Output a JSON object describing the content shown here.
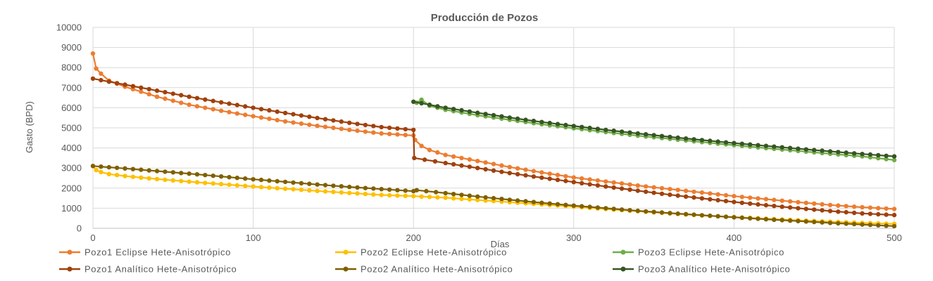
{
  "chart_data": {
    "type": "line",
    "title": "Producción de Pozos",
    "xlabel": "Días",
    "ylabel": "Gasto (BPD)",
    "xlim": [
      0,
      500
    ],
    "ylim": [
      0,
      10000
    ],
    "xticks": [
      0,
      100,
      200,
      300,
      400,
      500
    ],
    "yticks": [
      0,
      1000,
      2000,
      3000,
      4000,
      5000,
      6000,
      7000,
      8000,
      9000,
      10000
    ],
    "grid": true,
    "legend_position": "bottom",
    "series": [
      {
        "name": "Pozo1 Eclipse Hete-Anisotrópico",
        "color": "#ED7D31",
        "points": [
          [
            0,
            8700
          ],
          [
            2,
            7950
          ],
          [
            5,
            7700
          ],
          [
            10,
            7350
          ],
          [
            20,
            7050
          ],
          [
            40,
            6550
          ],
          [
            60,
            6150
          ],
          [
            80,
            5850
          ],
          [
            100,
            5580
          ],
          [
            120,
            5320
          ],
          [
            140,
            5100
          ],
          [
            160,
            4900
          ],
          [
            180,
            4720
          ],
          [
            200,
            4620
          ],
          [
            201,
            4400
          ],
          [
            205,
            4100
          ],
          [
            210,
            3900
          ],
          [
            220,
            3650
          ],
          [
            240,
            3350
          ],
          [
            260,
            3050
          ],
          [
            280,
            2780
          ],
          [
            300,
            2530
          ],
          [
            320,
            2330
          ],
          [
            340,
            2130
          ],
          [
            360,
            1950
          ],
          [
            380,
            1780
          ],
          [
            400,
            1600
          ],
          [
            420,
            1450
          ],
          [
            440,
            1300
          ],
          [
            460,
            1160
          ],
          [
            480,
            1050
          ],
          [
            500,
            960
          ]
        ],
        "marker": "circle"
      },
      {
        "name": "Pozo1 Analítico Hete-Anisotrópico",
        "color": "#A0410D",
        "points": [
          [
            0,
            7450
          ],
          [
            20,
            7150
          ],
          [
            40,
            6850
          ],
          [
            60,
            6550
          ],
          [
            80,
            6270
          ],
          [
            100,
            6000
          ],
          [
            120,
            5740
          ],
          [
            140,
            5490
          ],
          [
            160,
            5250
          ],
          [
            180,
            5040
          ],
          [
            200,
            4900
          ],
          [
            200.5,
            3500
          ],
          [
            220,
            3250
          ],
          [
            240,
            3000
          ],
          [
            260,
            2750
          ],
          [
            280,
            2520
          ],
          [
            300,
            2300
          ],
          [
            320,
            2080
          ],
          [
            340,
            1870
          ],
          [
            360,
            1670
          ],
          [
            380,
            1490
          ],
          [
            400,
            1310
          ],
          [
            420,
            1150
          ],
          [
            440,
            1000
          ],
          [
            460,
            860
          ],
          [
            480,
            740
          ],
          [
            500,
            660
          ]
        ],
        "marker": "circle"
      },
      {
        "name": "Pozo2 Eclipse Hete-Anisotrópico",
        "color": "#FFC000",
        "points": [
          [
            0,
            3100
          ],
          [
            2,
            2900
          ],
          [
            5,
            2800
          ],
          [
            10,
            2700
          ],
          [
            20,
            2600
          ],
          [
            40,
            2450
          ],
          [
            60,
            2320
          ],
          [
            80,
            2200
          ],
          [
            100,
            2080
          ],
          [
            120,
            1970
          ],
          [
            140,
            1860
          ],
          [
            160,
            1760
          ],
          [
            180,
            1660
          ],
          [
            200,
            1600
          ],
          [
            220,
            1520
          ],
          [
            240,
            1410
          ],
          [
            260,
            1300
          ],
          [
            280,
            1190
          ],
          [
            300,
            1080
          ],
          [
            320,
            960
          ],
          [
            340,
            850
          ],
          [
            360,
            740
          ],
          [
            380,
            640
          ],
          [
            400,
            560
          ],
          [
            420,
            480
          ],
          [
            440,
            400
          ],
          [
            460,
            330
          ],
          [
            480,
            270
          ],
          [
            500,
            220
          ]
        ],
        "marker": "circle"
      },
      {
        "name": "Pozo2 Analítico Hete-Anisotrópico",
        "color": "#7F6000",
        "points": [
          [
            0,
            3100
          ],
          [
            20,
            2980
          ],
          [
            40,
            2850
          ],
          [
            60,
            2720
          ],
          [
            80,
            2580
          ],
          [
            100,
            2440
          ],
          [
            120,
            2310
          ],
          [
            140,
            2180
          ],
          [
            160,
            2060
          ],
          [
            180,
            1950
          ],
          [
            200,
            1850
          ],
          [
            202,
            1900
          ],
          [
            220,
            1750
          ],
          [
            240,
            1580
          ],
          [
            260,
            1420
          ],
          [
            280,
            1270
          ],
          [
            300,
            1130
          ],
          [
            320,
            1000
          ],
          [
            340,
            870
          ],
          [
            360,
            760
          ],
          [
            380,
            650
          ],
          [
            400,
            550
          ],
          [
            420,
            450
          ],
          [
            440,
            360
          ],
          [
            460,
            270
          ],
          [
            480,
            190
          ],
          [
            500,
            110
          ]
        ],
        "marker": "circle"
      },
      {
        "name": "Pozo3 Eclipse Hete-Anisotrópico",
        "color": "#70AD47",
        "points": [
          [
            202,
            6250
          ],
          [
            205,
            6400
          ],
          [
            210,
            6100
          ],
          [
            220,
            5900
          ],
          [
            240,
            5630
          ],
          [
            260,
            5400
          ],
          [
            280,
            5180
          ],
          [
            300,
            4980
          ],
          [
            320,
            4790
          ],
          [
            340,
            4610
          ],
          [
            360,
            4450
          ],
          [
            380,
            4290
          ],
          [
            400,
            4140
          ],
          [
            420,
            3990
          ],
          [
            440,
            3850
          ],
          [
            460,
            3710
          ],
          [
            480,
            3580
          ],
          [
            500,
            3400
          ]
        ],
        "marker": "circle"
      },
      {
        "name": "Pozo3 Analítico Hete-Anisotrópico",
        "color": "#375623",
        "points": [
          [
            200,
            6300
          ],
          [
            220,
            6000
          ],
          [
            240,
            5750
          ],
          [
            260,
            5510
          ],
          [
            280,
            5290
          ],
          [
            300,
            5090
          ],
          [
            320,
            4900
          ],
          [
            340,
            4720
          ],
          [
            360,
            4550
          ],
          [
            380,
            4390
          ],
          [
            400,
            4240
          ],
          [
            420,
            4100
          ],
          [
            440,
            3960
          ],
          [
            460,
            3830
          ],
          [
            480,
            3700
          ],
          [
            500,
            3580
          ]
        ],
        "marker": "circle"
      }
    ]
  }
}
